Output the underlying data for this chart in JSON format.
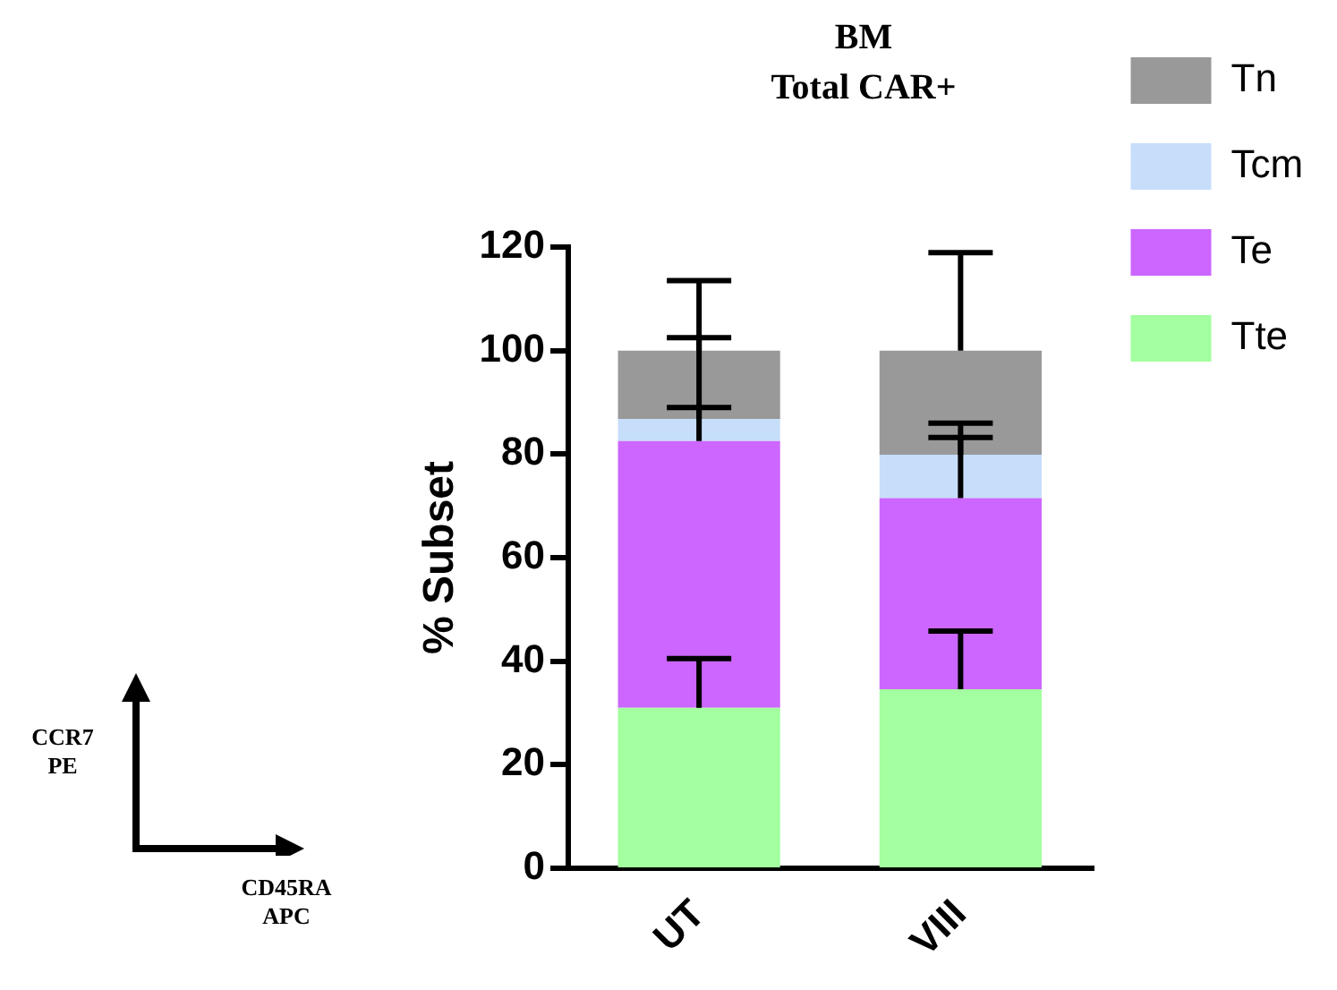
{
  "chart_data": {
    "type": "bar",
    "title": "BM",
    "subtitle": "Total CAR+",
    "ylabel": "% Subset",
    "categories": [
      "UT",
      "VIII"
    ],
    "stacked": true,
    "series": [
      {
        "name": "Tte",
        "color": "#a3ff9f",
        "values": [
          31,
          34.6
        ],
        "errors": [
          [
            31,
            40.5
          ],
          [
            34.6,
            45.8
          ]
        ]
      },
      {
        "name": "Te",
        "color": "#cc66ff",
        "values": [
          51.5,
          36.9
        ],
        "errors": [
          [
            82.5,
            89
          ],
          [
            71.5,
            83.2
          ]
        ]
      },
      {
        "name": "Tcm",
        "color": "#c7defa",
        "values": [
          4.3,
          8.4
        ],
        "errors": [
          [
            86.8,
            102.5
          ],
          [
            79.9,
            86
          ]
        ]
      },
      {
        "name": "Tn",
        "color": "#999999",
        "values": [
          13.2,
          20.1
        ],
        "errors": [
          [
            100,
            113.5
          ],
          [
            100,
            118.9
          ]
        ]
      }
    ],
    "ylim": [
      0,
      120
    ],
    "yticks": [
      0,
      20,
      40,
      60,
      80,
      100,
      120
    ],
    "grid": false,
    "legend": "right",
    "annotations": [
      "CCR7\nPE",
      "CD45RA\nAPC"
    ]
  }
}
